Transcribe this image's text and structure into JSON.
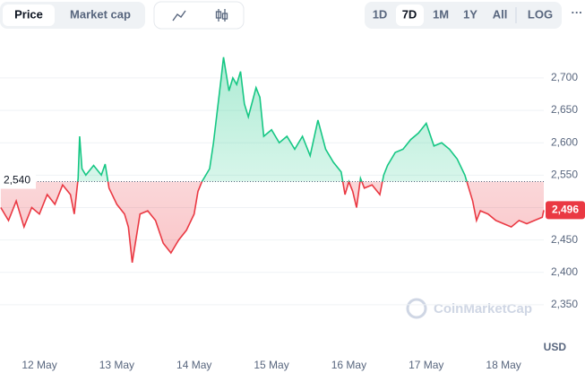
{
  "ui": {
    "tabs": [
      "Price",
      "Market cap"
    ],
    "ranges": [
      "1D",
      "7D",
      "1M",
      "1Y",
      "All"
    ],
    "log": "LOG",
    "more": "···",
    "watermark": "CoinMarketCap",
    "currency": "USD"
  },
  "chart_data": {
    "type": "line",
    "x": [
      11.5,
      11.6,
      11.7,
      11.8,
      11.9,
      12.0,
      12.1,
      12.2,
      12.3,
      12.4,
      12.45,
      12.5,
      12.52,
      12.55,
      12.6,
      12.7,
      12.8,
      12.85,
      12.9,
      13.0,
      13.1,
      13.15,
      13.2,
      13.3,
      13.4,
      13.5,
      13.6,
      13.7,
      13.8,
      13.9,
      14.0,
      14.05,
      14.1,
      14.2,
      14.25,
      14.3,
      14.35,
      14.38,
      14.45,
      14.5,
      14.55,
      14.6,
      14.65,
      14.7,
      14.8,
      14.85,
      14.9,
      15.0,
      15.1,
      15.2,
      15.3,
      15.4,
      15.5,
      15.6,
      15.7,
      15.8,
      15.9,
      15.95,
      16.0,
      16.05,
      16.1,
      16.15,
      16.2,
      16.3,
      16.4,
      16.45,
      16.5,
      16.6,
      16.7,
      16.8,
      16.9,
      17.0,
      17.1,
      17.2,
      17.3,
      17.4,
      17.5,
      17.6,
      17.65,
      17.7,
      17.8,
      17.9,
      18.0,
      18.1,
      18.2,
      18.3,
      18.4,
      18.5,
      18.52
    ],
    "series": [
      {
        "name": "Price",
        "color_up": "#16c784",
        "color_down": "#ea3943",
        "values": [
          2500,
          2480,
          2510,
          2470,
          2500,
          2490,
          2520,
          2505,
          2535,
          2520,
          2490,
          2545,
          2610,
          2560,
          2550,
          2565,
          2550,
          2567,
          2530,
          2505,
          2490,
          2470,
          2415,
          2490,
          2495,
          2480,
          2445,
          2430,
          2450,
          2465,
          2490,
          2525,
          2540,
          2560,
          2600,
          2650,
          2700,
          2732,
          2680,
          2700,
          2690,
          2710,
          2660,
          2640,
          2685,
          2670,
          2610,
          2620,
          2600,
          2610,
          2590,
          2610,
          2580,
          2635,
          2590,
          2570,
          2555,
          2520,
          2540,
          2525,
          2500,
          2545,
          2530,
          2535,
          2520,
          2550,
          2565,
          2585,
          2590,
          2605,
          2615,
          2630,
          2595,
          2600,
          2590,
          2575,
          2550,
          2510,
          2480,
          2495,
          2490,
          2480,
          2475,
          2470,
          2480,
          2475,
          2480,
          2485,
          2496
        ]
      }
    ],
    "baseline": {
      "value": 2540,
      "label": "2,540"
    },
    "current_price": {
      "value": 2496,
      "label": "2,496"
    },
    "xlim": [
      11.49,
      18.52
    ],
    "xticks": [
      {
        "value": 12,
        "label": "12 May"
      },
      {
        "value": 13,
        "label": "13 May"
      },
      {
        "value": 14,
        "label": "14 May"
      },
      {
        "value": 15,
        "label": "15 May"
      },
      {
        "value": 16,
        "label": "16 May"
      },
      {
        "value": 17,
        "label": "17 May"
      },
      {
        "value": 18,
        "label": "18 May"
      }
    ],
    "ylim": [
      2300,
      2750
    ],
    "yticks": [
      {
        "value": 2350,
        "label": "2,350"
      },
      {
        "value": 2400,
        "label": "2,400"
      },
      {
        "value": 2450,
        "label": "2,450"
      },
      {
        "value": 2500,
        "label": "2,500"
      },
      {
        "value": 2550,
        "label": "2,550"
      },
      {
        "value": 2600,
        "label": "2,600"
      },
      {
        "value": 2650,
        "label": "2,650"
      },
      {
        "value": 2700,
        "label": "2,700"
      }
    ],
    "grid": true
  }
}
